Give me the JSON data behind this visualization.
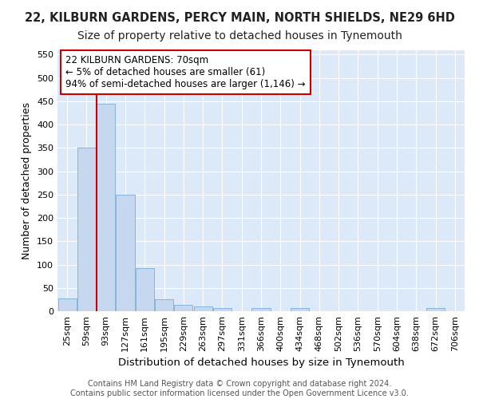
{
  "title1": "22, KILBURN GARDENS, PERCY MAIN, NORTH SHIELDS, NE29 6HD",
  "title2": "Size of property relative to detached houses in Tynemouth",
  "xlabel": "Distribution of detached houses by size in Tynemouth",
  "ylabel": "Number of detached properties",
  "categories": [
    "25sqm",
    "59sqm",
    "93sqm",
    "127sqm",
    "161sqm",
    "195sqm",
    "229sqm",
    "263sqm",
    "297sqm",
    "331sqm",
    "366sqm",
    "400sqm",
    "434sqm",
    "468sqm",
    "502sqm",
    "536sqm",
    "570sqm",
    "604sqm",
    "638sqm",
    "672sqm",
    "706sqm"
  ],
  "values": [
    28,
    350,
    445,
    250,
    93,
    25,
    14,
    11,
    6,
    0,
    7,
    0,
    6,
    0,
    0,
    0,
    0,
    0,
    0,
    6,
    0
  ],
  "bar_color": "#c5d8f0",
  "bar_edgecolor": "#7aadd4",
  "vline_x": 1.5,
  "vline_color": "#cc0000",
  "ylim": [
    0,
    560
  ],
  "yticks": [
    0,
    50,
    100,
    150,
    200,
    250,
    300,
    350,
    400,
    450,
    500,
    550
  ],
  "annotation_lines": [
    "22 KILBURN GARDENS: 70sqm",
    "← 5% of detached houses are smaller (61)",
    "94% of semi-detached houses are larger (1,146) →"
  ],
  "annotation_box_facecolor": "#ffffff",
  "annotation_box_edgecolor": "#cc0000",
  "footer1": "Contains HM Land Registry data © Crown copyright and database right 2024.",
  "footer2": "Contains public sector information licensed under the Open Government Licence v3.0.",
  "plot_bg_color": "#dce9f8",
  "grid_color": "#ffffff",
  "fig_bg_color": "#ffffff",
  "title1_fontsize": 10.5,
  "title2_fontsize": 10,
  "tick_fontsize": 8,
  "ylabel_fontsize": 9,
  "xlabel_fontsize": 9.5,
  "footer_fontsize": 7,
  "ann_fontsize": 8.5
}
